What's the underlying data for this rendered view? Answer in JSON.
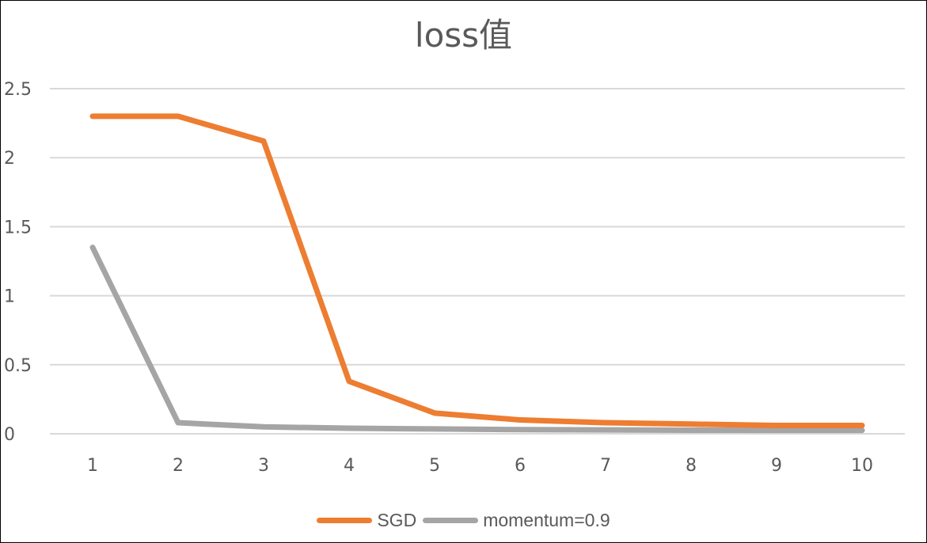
{
  "chart_data": {
    "type": "line",
    "title": "loss值",
    "categories": [
      "1",
      "2",
      "3",
      "4",
      "5",
      "6",
      "7",
      "8",
      "9",
      "10"
    ],
    "series": [
      {
        "name": "SGD",
        "color": "#ED7D31",
        "values": [
          2.3,
          2.3,
          2.12,
          0.38,
          0.15,
          0.1,
          0.08,
          0.07,
          0.06,
          0.06
        ]
      },
      {
        "name": "momentum=0.9",
        "color": "#A5A5A5",
        "values": [
          1.35,
          0.08,
          0.05,
          0.04,
          0.035,
          0.03,
          0.028,
          0.026,
          0.025,
          0.025
        ]
      }
    ],
    "y_ticks": [
      "0",
      "0.5",
      "1",
      "1.5",
      "2",
      "2.5"
    ],
    "ylim": [
      0,
      2.5
    ],
    "grid": "horizontal",
    "legend_position": "bottom"
  }
}
